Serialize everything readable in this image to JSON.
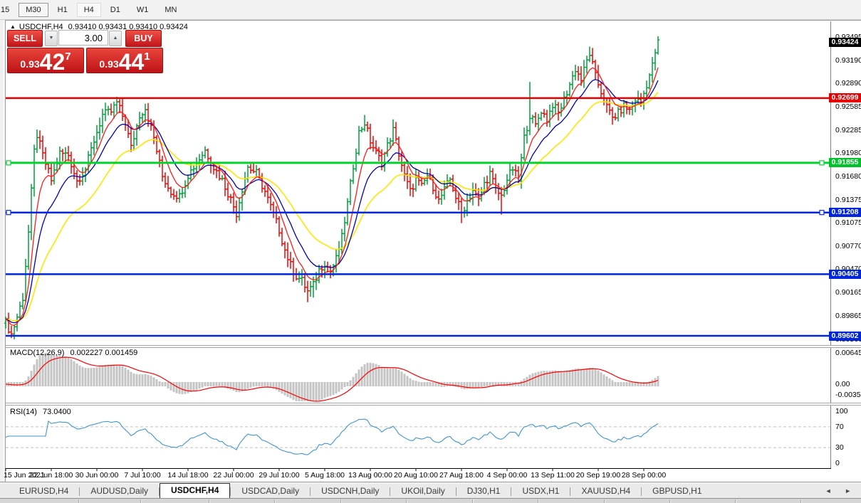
{
  "toolbar": {
    "buttons": [
      {
        "label": "15",
        "state": "cut"
      },
      {
        "label": "M30",
        "state": "pressed"
      },
      {
        "label": "H1",
        "state": "normal"
      },
      {
        "label": "H4",
        "state": "highlight"
      },
      {
        "label": "D1",
        "state": "normal"
      },
      {
        "label": "W1",
        "state": "normal"
      },
      {
        "label": "MN",
        "state": "normal"
      }
    ]
  },
  "chart_window": {
    "collapse_icon": "▲",
    "title": "USDCHF,H4",
    "ohlc_text": "0.93410 0.93431 0.93410 0.93424"
  },
  "trade_panel": {
    "sell_label": "SELL",
    "buy_label": "BUY",
    "volume": "3.00",
    "spin_down_icon": "▼",
    "spin_up_icon": "▲",
    "sell_price": {
      "prefix": "0.93",
      "big": "42",
      "sup": "7"
    },
    "buy_price": {
      "prefix": "0.93",
      "big": "44",
      "sup": "1"
    }
  },
  "macd_panel": {
    "label": "MACD(12,26,9)",
    "values": "0.002227 0.001459"
  },
  "rsi_panel": {
    "label": "RSI(14)",
    "value": "73.0400"
  },
  "tabs": {
    "items": [
      {
        "label": "EURUSD,H4",
        "active": false
      },
      {
        "label": "AUDUSD,Daily",
        "active": false
      },
      {
        "label": "USDCHF,H4",
        "active": true
      },
      {
        "label": "USDCAD,Daily",
        "active": false
      },
      {
        "label": "USDCNH,Daily",
        "active": false
      },
      {
        "label": "UKOil,Daily",
        "active": false
      },
      {
        "label": "DJ30,H1",
        "active": false
      },
      {
        "label": "USDX,H1",
        "active": false
      },
      {
        "label": "XAUUSD,H4",
        "active": false
      },
      {
        "label": "GBPUSD,H1",
        "active": false
      }
    ],
    "scroll_left_icon": "◄",
    "scroll_right_icon": "►"
  },
  "chart_data": {
    "type": "candlestick",
    "symbol": "USDCHF",
    "timeframe": "H4",
    "bars": 230,
    "colors": {
      "up": "#00a23c",
      "down": "#f60505",
      "macd_hist": "#c4c4c4",
      "macd_signal": "#ff0000",
      "rsi": "#3e95d0",
      "rsi_levels": "#c0c0c0",
      "axis_line": "#000000"
    },
    "price_anchors": [
      [
        0,
        0.8978
      ],
      [
        2,
        0.8962
      ],
      [
        4,
        0.8985
      ],
      [
        6,
        0.901
      ],
      [
        8,
        0.9095
      ],
      [
        10,
        0.92
      ],
      [
        11,
        0.9222
      ],
      [
        13,
        0.9195
      ],
      [
        16,
        0.9163
      ],
      [
        19,
        0.9198
      ],
      [
        22,
        0.9196
      ],
      [
        25,
        0.9162
      ],
      [
        28,
        0.9178
      ],
      [
        31,
        0.9215
      ],
      [
        34,
        0.9248
      ],
      [
        37,
        0.9252
      ],
      [
        39,
        0.9264
      ],
      [
        42,
        0.9238
      ],
      [
        44,
        0.9205
      ],
      [
        47,
        0.9248
      ],
      [
        49,
        0.9257
      ],
      [
        52,
        0.9218
      ],
      [
        55,
        0.9168
      ],
      [
        58,
        0.9148
      ],
      [
        61,
        0.9142
      ],
      [
        64,
        0.917
      ],
      [
        67,
        0.9186
      ],
      [
        70,
        0.9202
      ],
      [
        73,
        0.918
      ],
      [
        76,
        0.9163
      ],
      [
        79,
        0.9138
      ],
      [
        81,
        0.912
      ],
      [
        83,
        0.9152
      ],
      [
        85,
        0.918
      ],
      [
        88,
        0.9172
      ],
      [
        91,
        0.9148
      ],
      [
        94,
        0.9118
      ],
      [
        96,
        0.9098
      ],
      [
        98,
        0.9072
      ],
      [
        100,
        0.9052
      ],
      [
        102,
        0.9038
      ],
      [
        104,
        0.9032
      ],
      [
        106,
        0.9018
      ],
      [
        108,
        0.9026
      ],
      [
        110,
        0.9046
      ],
      [
        112,
        0.9056
      ],
      [
        114,
        0.9044
      ],
      [
        116,
        0.906
      ],
      [
        118,
        0.9088
      ],
      [
        120,
        0.9132
      ],
      [
        122,
        0.9182
      ],
      [
        124,
        0.9225
      ],
      [
        126,
        0.9238
      ],
      [
        128,
        0.9214
      ],
      [
        130,
        0.9198
      ],
      [
        132,
        0.9186
      ],
      [
        134,
        0.9208
      ],
      [
        136,
        0.9228
      ],
      [
        138,
        0.9198
      ],
      [
        140,
        0.9168
      ],
      [
        142,
        0.9148
      ],
      [
        144,
        0.9164
      ],
      [
        146,
        0.9154
      ],
      [
        148,
        0.9169
      ],
      [
        150,
        0.9155
      ],
      [
        152,
        0.9136
      ],
      [
        154,
        0.915
      ],
      [
        156,
        0.9164
      ],
      [
        158,
        0.9141
      ],
      [
        160,
        0.912
      ],
      [
        162,
        0.9136
      ],
      [
        164,
        0.915
      ],
      [
        166,
        0.9136
      ],
      [
        168,
        0.9158
      ],
      [
        170,
        0.9172
      ],
      [
        172,
        0.915
      ],
      [
        174,
        0.9142
      ],
      [
        176,
        0.9164
      ],
      [
        178,
        0.9178
      ],
      [
        180,
        0.9162
      ],
      [
        182,
        0.9218
      ],
      [
        184,
        0.9248
      ],
      [
        186,
        0.9234
      ],
      [
        188,
        0.9254
      ],
      [
        190,
        0.9242
      ],
      [
        192,
        0.9262
      ],
      [
        194,
        0.925
      ],
      [
        196,
        0.9268
      ],
      [
        198,
        0.9288
      ],
      [
        200,
        0.9308
      ],
      [
        202,
        0.9294
      ],
      [
        204,
        0.9318
      ],
      [
        205,
        0.9328
      ],
      [
        207,
        0.9298
      ],
      [
        209,
        0.9278
      ],
      [
        211,
        0.9258
      ],
      [
        213,
        0.9244
      ],
      [
        215,
        0.925
      ],
      [
        217,
        0.926
      ],
      [
        219,
        0.9254
      ],
      [
        221,
        0.9268
      ],
      [
        223,
        0.9264
      ],
      [
        225,
        0.9288
      ],
      [
        227,
        0.9312
      ],
      [
        228,
        0.933
      ],
      [
        229,
        0.9342
      ]
    ],
    "spikes": [
      {
        "i": 11,
        "high": 0.9229
      },
      {
        "i": 39,
        "high": 0.927
      },
      {
        "i": 81,
        "low": 0.9112
      },
      {
        "i": 106,
        "low": 0.9004
      },
      {
        "i": 108,
        "low": 0.901
      },
      {
        "i": 126,
        "high": 0.9248
      },
      {
        "i": 160,
        "low": 0.9107
      },
      {
        "i": 174,
        "low": 0.9118
      },
      {
        "i": 184,
        "high": 0.9291
      },
      {
        "i": 205,
        "high": 0.9337
      },
      {
        "i": 229,
        "high": 0.935
      }
    ],
    "noise_amp": 0.00055,
    "wick_amp": 0.0009,
    "moving_averages": [
      {
        "period": 30,
        "color": "#ffe600",
        "width": 1.6
      },
      {
        "period": 14,
        "color": "#0000b4",
        "width": 1.3
      },
      {
        "period": 7,
        "color": "#ff1a1a",
        "width": 1.3
      }
    ],
    "levels": [
      {
        "price": 0.92699,
        "color": "#e60000",
        "width": 2.5,
        "handles": false
      },
      {
        "price": 0.91855,
        "color": "#00d42c",
        "width": 3,
        "handles": true
      },
      {
        "price": 0.91208,
        "color": "#0026dd",
        "width": 2.5,
        "handles": true
      },
      {
        "price": 0.90405,
        "color": "#0026dd",
        "width": 2.5,
        "handles": false
      },
      {
        "price": 0.89602,
        "color": "#0026dd",
        "width": 2.5,
        "handles": false
      }
    ],
    "y_axis": {
      "labels": [
        "0.93495",
        "0.93190",
        "0.92890",
        "0.92585",
        "0.92285",
        "0.91980",
        "0.91680",
        "0.91375",
        "0.91075",
        "0.90770",
        "0.90470",
        "0.90165",
        "0.89865",
        "0.89560"
      ]
    },
    "badges": [
      {
        "text": "0.93424",
        "price": 0.93424,
        "bg": "#000000"
      },
      {
        "text": "0.92699",
        "price": 0.92699,
        "bg": "#e60000"
      },
      {
        "text": "0.91855",
        "price": 0.91855,
        "bg": "#00c32a"
      },
      {
        "text": "0.91208",
        "price": 0.91208,
        "bg": "#0026dd"
      },
      {
        "text": "0.90405",
        "price": 0.90405,
        "bg": "#0026dd"
      },
      {
        "text": "0.89602",
        "price": 0.89602,
        "bg": "#0026dd"
      }
    ],
    "x_axis": {
      "labels": [
        "15 Jun 2021",
        "22 Jun 18:00",
        "30 Jun 00:00",
        "7 Jul 10:00",
        "14 Jul 18:00",
        "22 Jul 00:00",
        "29 Jul 10:00",
        "5 Aug 18:00",
        "13 Aug 00:00",
        "20 Aug 10:00",
        "27 Aug 18:00",
        "4 Sep 00:00",
        "13 Sep 11:00",
        "20 Sep 19:00",
        "28 Sep 00:00"
      ]
    },
    "macd": {
      "fast": 12,
      "slow": 26,
      "signal": 9,
      "axis_labels": [
        "0.006451",
        "0.00",
        "-0.003507"
      ],
      "axis_max": 0.006451
    },
    "rsi": {
      "period": 14,
      "axis_labels": [
        "100",
        "70",
        "30",
        "0"
      ],
      "levels": [
        70,
        30
      ]
    }
  }
}
